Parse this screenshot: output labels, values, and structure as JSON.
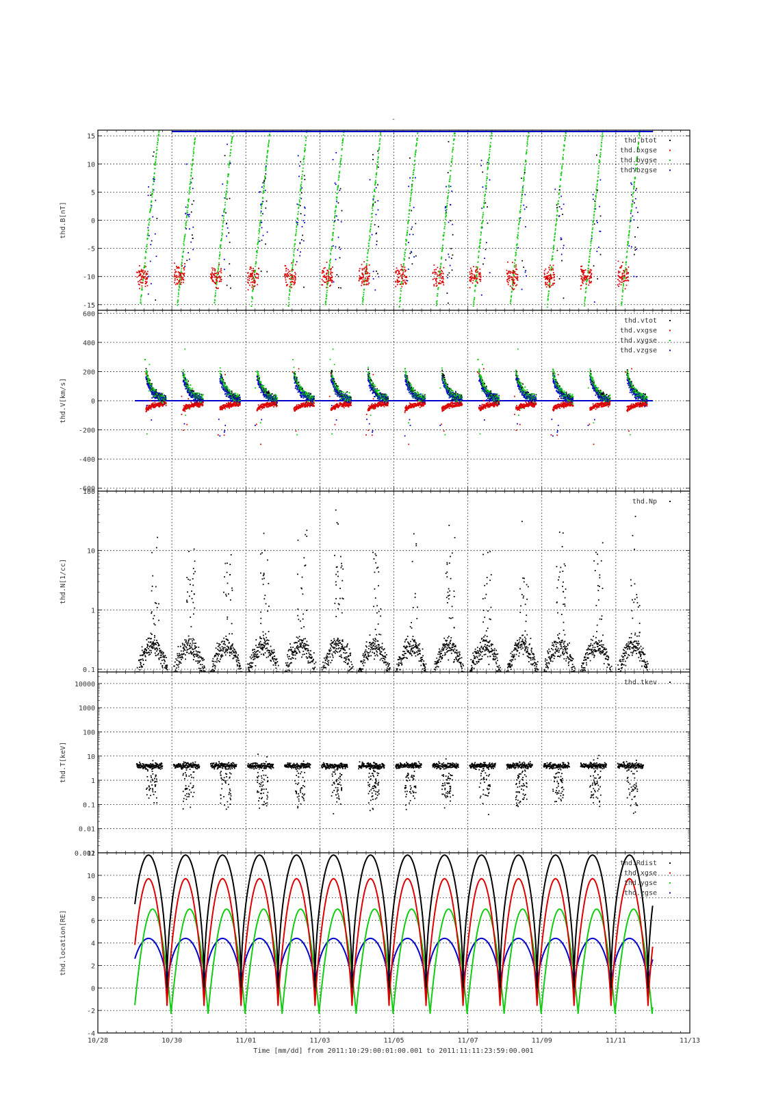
{
  "figure": {
    "title": "-",
    "xlabel": "Time [mm/dd]  from 2011:10:29:00:01:00.001  to  2011:11:11:23:59:00.001",
    "xticks": [
      "10/28",
      "10/30",
      "11/01",
      "11/03",
      "11/05",
      "11/07",
      "11/09",
      "11/11",
      "11/13"
    ]
  },
  "colors": {
    "black": "#000000",
    "red": "#dd0000",
    "green": "#11cc11",
    "blue": "#0000cc"
  },
  "chart_data": [
    {
      "type": "scatter",
      "ylabel": "thd.B[nT]",
      "ylim": [
        -16,
        16
      ],
      "log": false,
      "yticks": [
        -15,
        -10,
        -5,
        0,
        5,
        10,
        15
      ],
      "ytick_labels": [
        "-15",
        "-10",
        "-5",
        "0",
        "5",
        "10",
        "15"
      ],
      "legend": "top-right",
      "grid": true,
      "series": [
        {
          "name": "thd.btot",
          "color": "black"
        },
        {
          "name": "thd.bxgse",
          "color": "red"
        },
        {
          "name": "thd.bygse",
          "color": "green"
        },
        {
          "name": "thd.bzgse",
          "color": "blue"
        }
      ]
    },
    {
      "type": "scatter",
      "ylabel": "thd.V[km/s]",
      "ylim": [
        -620,
        620
      ],
      "log": false,
      "yticks": [
        -600,
        -400,
        -200,
        0,
        200,
        400,
        600
      ],
      "ytick_labels": [
        "-600",
        "-400",
        "-200",
        "0",
        "200",
        "400",
        "600"
      ],
      "legend": "top-right",
      "grid": true,
      "series": [
        {
          "name": "thd.vtot",
          "color": "black"
        },
        {
          "name": "thd.vxgse",
          "color": "red"
        },
        {
          "name": "thd.vygse",
          "color": "green"
        },
        {
          "name": "thd.vzgse",
          "color": "blue"
        }
      ]
    },
    {
      "type": "scatter",
      "ylabel": "thd.N[1/cc]",
      "ylim": [
        0.09,
        100
      ],
      "log": true,
      "yticks": [
        0.1,
        1,
        10,
        100
      ],
      "ytick_labels": [
        "0.1",
        "1",
        "10",
        "100"
      ],
      "legend": "top-right",
      "grid": true,
      "series": [
        {
          "name": "thd.Np",
          "color": "black"
        }
      ]
    },
    {
      "type": "scatter",
      "ylabel": "thd.T[keV]",
      "ylim": [
        0.001,
        30000
      ],
      "log": true,
      "yticks": [
        0.001,
        0.01,
        0.1,
        1,
        10,
        100,
        1000,
        10000
      ],
      "ytick_labels": [
        "0.001",
        "0.01",
        "0.1",
        "1",
        "10",
        "100",
        "1000",
        "10000"
      ],
      "legend": "top-right",
      "grid": true,
      "series": [
        {
          "name": "thd.tkev",
          "color": "black"
        }
      ]
    },
    {
      "type": "line",
      "ylabel": "thd.location[RE]",
      "ylim": [
        -4,
        12
      ],
      "log": false,
      "yticks": [
        -4,
        -2,
        0,
        2,
        4,
        6,
        8,
        10,
        12
      ],
      "ytick_labels": [
        "-4",
        "-2",
        "0",
        "2",
        "4",
        "6",
        "8",
        "10",
        "12"
      ],
      "legend": "top-right",
      "grid": true,
      "series": [
        {
          "name": "thd.Rdist",
          "color": "black"
        },
        {
          "name": "thd.xgse",
          "color": "red"
        },
        {
          "name": "thd.ygse",
          "color": "green"
        },
        {
          "name": "thd.zgse",
          "color": "blue"
        }
      ]
    }
  ]
}
